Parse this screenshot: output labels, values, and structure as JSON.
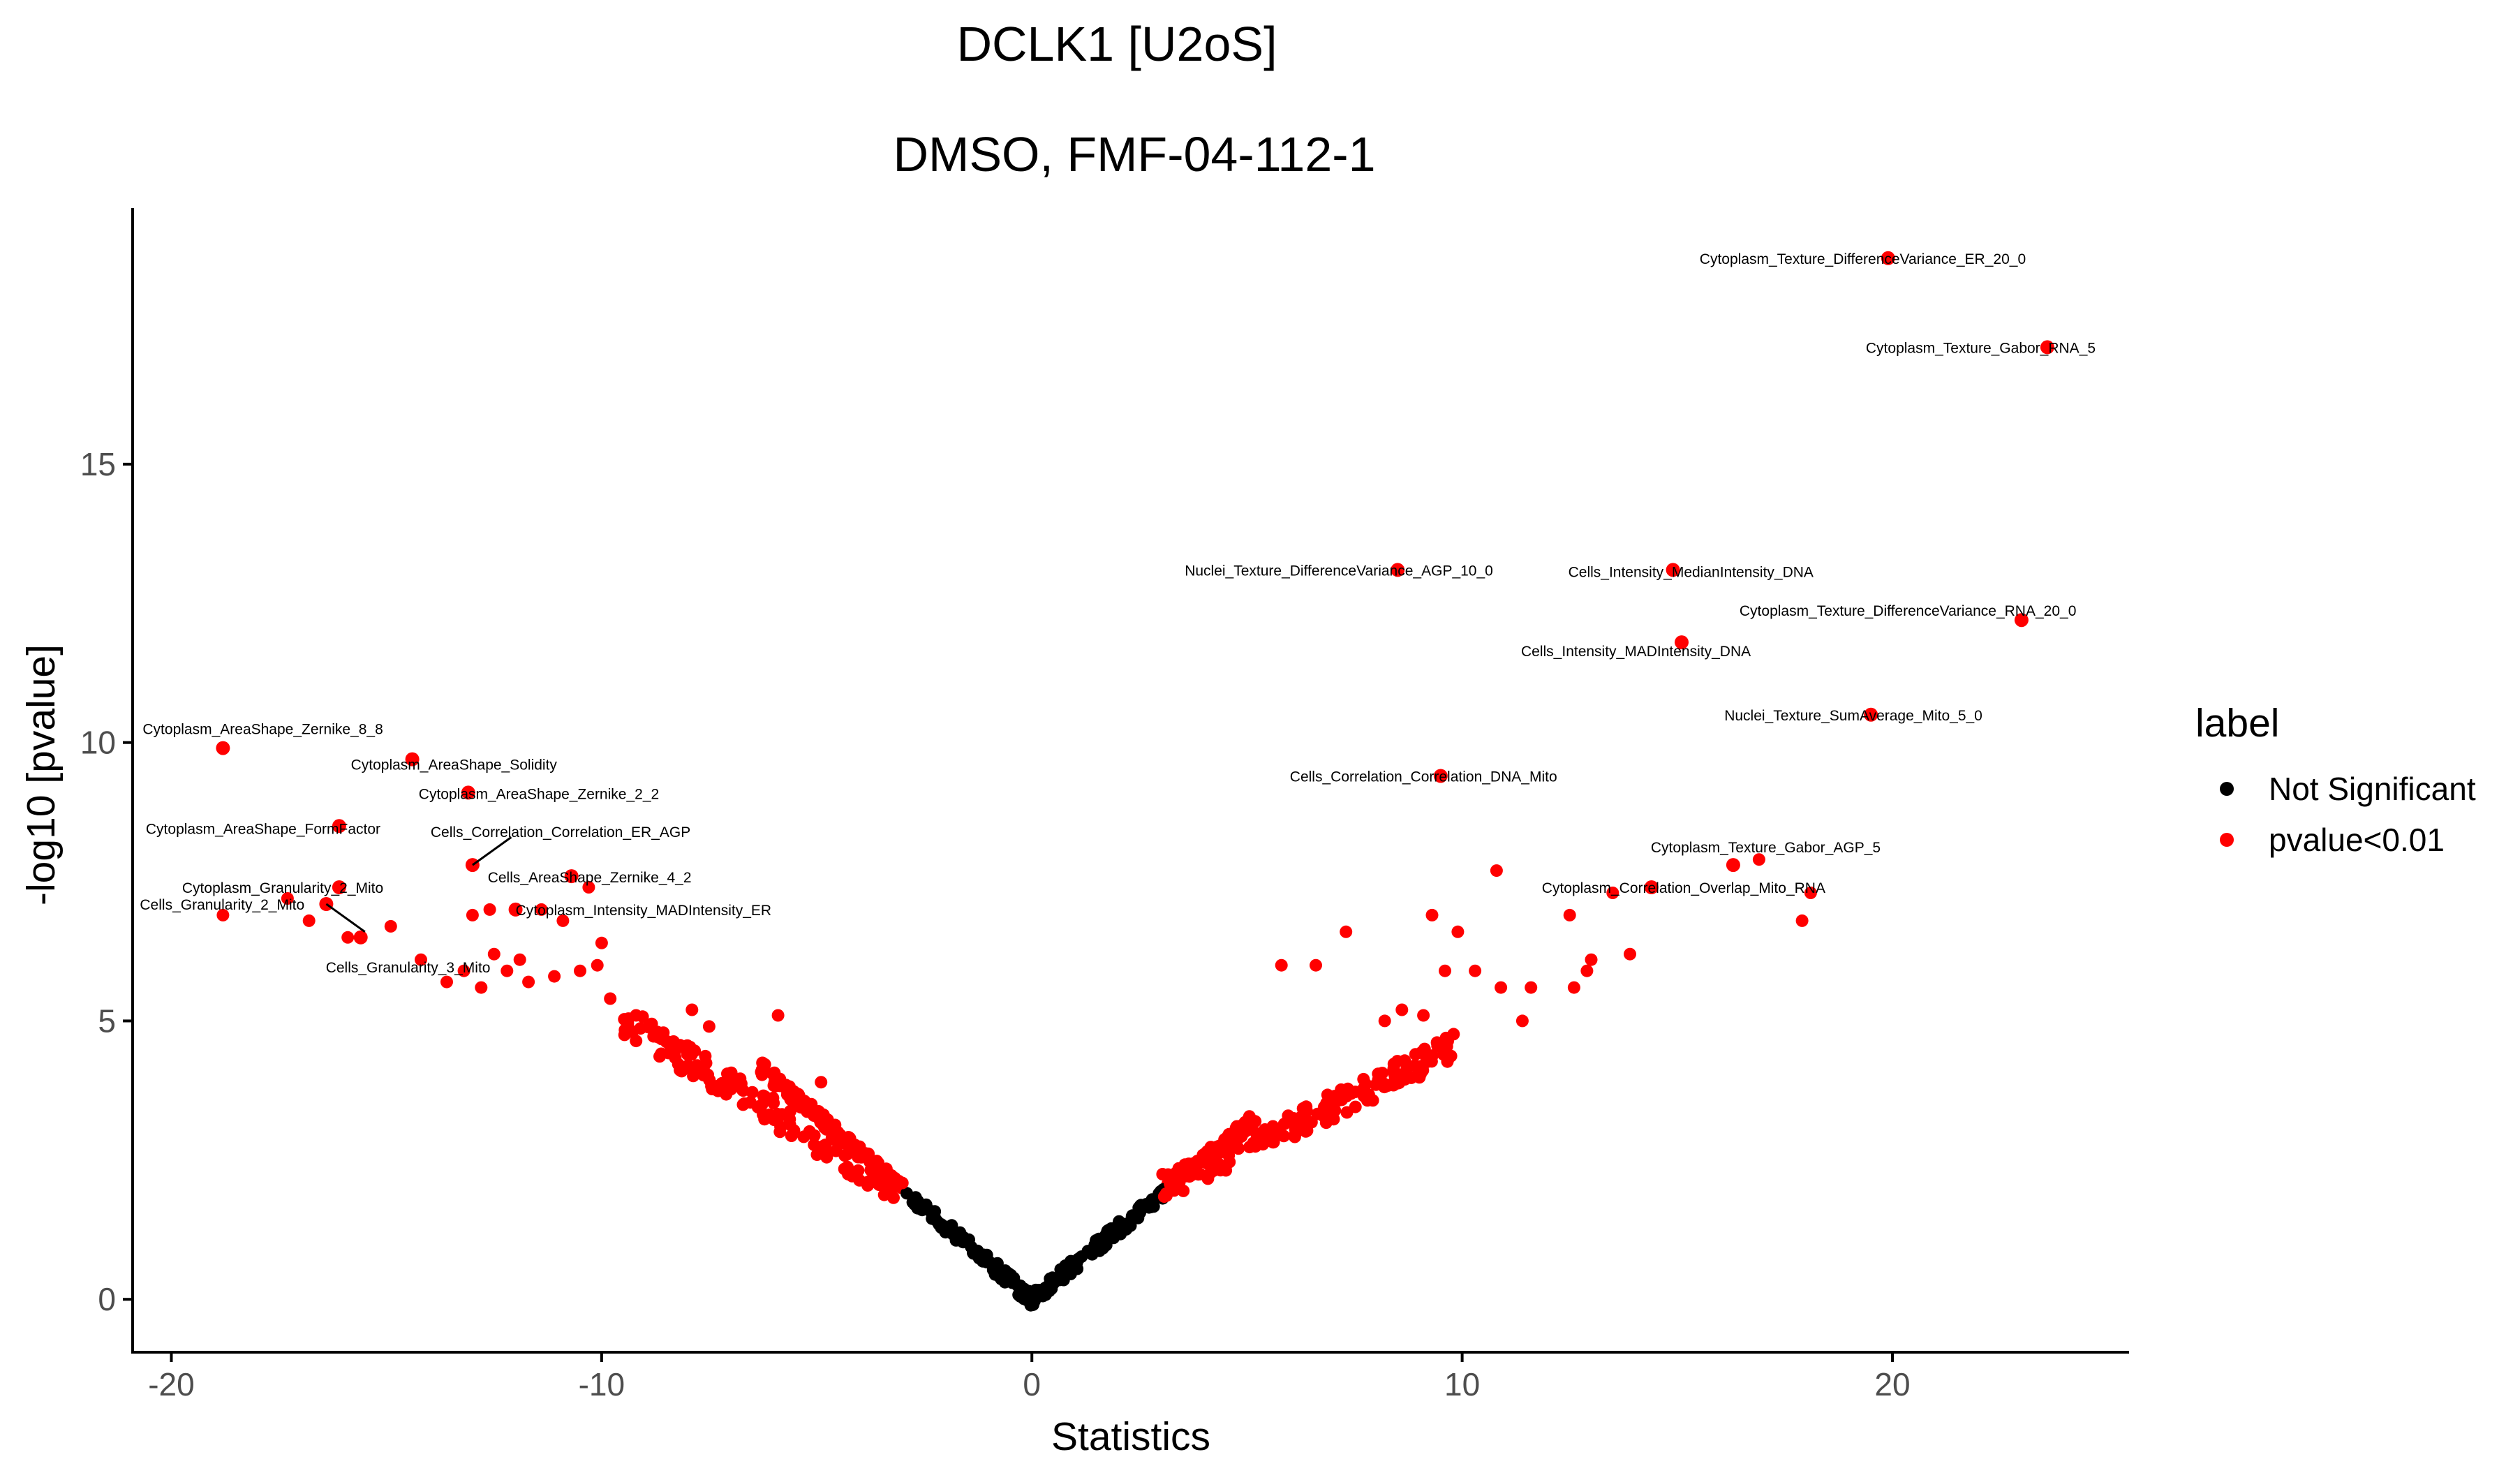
{
  "chart_data": {
    "type": "scatter",
    "title": "DCLK1 [U2oS]",
    "subtitle": "DMSO, FMF-04-112-1",
    "xlabel": "Statistics",
    "ylabel": "-log10 [pvalue]",
    "xlim": [
      -20.9,
      25.5
    ],
    "ylim": [
      -0.95,
      19.6
    ],
    "xticks": [
      -20,
      -10,
      0,
      10,
      20
    ],
    "yticks": [
      0,
      5,
      10,
      15
    ],
    "grid": false,
    "legend": {
      "title": "label",
      "position": "right",
      "entries": [
        {
          "label": "Not Significant",
          "color": "#000000"
        },
        {
          "label": "pvalue<0.01",
          "color": "#ff0000"
        }
      ]
    },
    "labeled_points": [
      {
        "x": 19.9,
        "y": 18.7,
        "label": "Cytoplasm_Texture_DifferenceVariance_ER_20_0"
      },
      {
        "x": 23.6,
        "y": 17.1,
        "label": "Cytoplasm_Texture_Gabor_RNA_5"
      },
      {
        "x": 8.5,
        "y": 13.1,
        "label": "Nuclei_Texture_DifferenceVariance_AGP_10_0"
      },
      {
        "x": 14.9,
        "y": 13.1,
        "label": "Cells_Intensity_MedianIntensity_DNA"
      },
      {
        "x": 23.0,
        "y": 12.2,
        "label": "Cytoplasm_Texture_DifferenceVariance_RNA_20_0"
      },
      {
        "x": 15.1,
        "y": 11.8,
        "label": "Cells_Intensity_MADIntensity_DNA"
      },
      {
        "x": 19.5,
        "y": 10.5,
        "label": "Nuclei_Texture_SumAverage_Mito_5_0"
      },
      {
        "x": 9.5,
        "y": 9.4,
        "label": "Cells_Correlation_Correlation_DNA_Mito"
      },
      {
        "x": 16.3,
        "y": 7.8,
        "label": "Cytoplasm_Texture_Gabor_AGP_5"
      },
      {
        "x": 14.4,
        "y": 7.4,
        "label": "Cytoplasm_Correlation_Overlap_Mito_RNA"
      },
      {
        "x": -18.8,
        "y": 9.9,
        "label": "Cytoplasm_AreaShape_Zernike_8_8"
      },
      {
        "x": -14.4,
        "y": 9.7,
        "label": "Cytoplasm_AreaShape_Solidity"
      },
      {
        "x": -13.1,
        "y": 9.1,
        "label": "Cytoplasm_AreaShape_Zernike_2_2"
      },
      {
        "x": -16.1,
        "y": 8.5,
        "label": "Cytoplasm_AreaShape_FormFactor"
      },
      {
        "x": -13.0,
        "y": 7.8,
        "label": "Cells_Correlation_Correlation_ER_AGP"
      },
      {
        "x": -10.7,
        "y": 7.6,
        "label": "Cells_AreaShape_Zernike_4_2"
      },
      {
        "x": -16.1,
        "y": 7.4,
        "label": "Cytoplasm_Granularity_2_Mito"
      },
      {
        "x": -12.0,
        "y": 7.0,
        "label": "Cytoplasm_Intensity_MADIntensity_ER"
      },
      {
        "x": -16.4,
        "y": 7.1,
        "label": "Cells_Granularity_2_Mito"
      },
      {
        "x": -15.6,
        "y": 6.5,
        "label": "Cells_Granularity_3_Mito"
      }
    ],
    "extra_significant_points": [
      [
        -18.8,
        6.9
      ],
      [
        -17.3,
        7.2
      ],
      [
        -16.8,
        6.8
      ],
      [
        -15.9,
        6.5
      ],
      [
        -14.9,
        6.7
      ],
      [
        -14.2,
        6.1
      ],
      [
        -13.0,
        6.9
      ],
      [
        -12.6,
        7.0
      ],
      [
        -11.4,
        7.0
      ],
      [
        -10.9,
        6.8
      ],
      [
        -10.3,
        7.4
      ],
      [
        -10.0,
        6.4
      ],
      [
        -13.6,
        5.7
      ],
      [
        -13.2,
        5.9
      ],
      [
        -12.8,
        5.6
      ],
      [
        -12.2,
        5.9
      ],
      [
        -11.7,
        5.7
      ],
      [
        -11.1,
        5.8
      ],
      [
        -10.5,
        5.9
      ],
      [
        -10.1,
        6.0
      ],
      [
        -9.8,
        5.4
      ],
      [
        -9.2,
        5.1
      ],
      [
        -8.7,
        4.8
      ],
      [
        -7.9,
        5.2
      ],
      [
        -7.5,
        4.9
      ],
      [
        -5.9,
        5.1
      ],
      [
        -4.9,
        3.9
      ],
      [
        -12.5,
        6.2
      ],
      [
        -11.9,
        6.1
      ],
      [
        5.8,
        6.0
      ],
      [
        6.6,
        6.0
      ],
      [
        7.3,
        6.6
      ],
      [
        9.3,
        6.9
      ],
      [
        9.9,
        6.6
      ],
      [
        10.3,
        5.9
      ],
      [
        10.9,
        5.6
      ],
      [
        11.6,
        5.6
      ],
      [
        12.6,
        5.6
      ],
      [
        10.8,
        7.7
      ],
      [
        12.5,
        6.9
      ],
      [
        12.9,
        5.9
      ],
      [
        13.0,
        6.1
      ],
      [
        13.5,
        7.3
      ],
      [
        13.9,
        6.2
      ],
      [
        17.9,
        6.8
      ],
      [
        18.1,
        7.3
      ],
      [
        16.9,
        7.9
      ],
      [
        9.6,
        5.9
      ],
      [
        8.2,
        5.0
      ],
      [
        8.6,
        5.2
      ],
      [
        9.1,
        5.1
      ],
      [
        11.4,
        5.0
      ]
    ]
  }
}
